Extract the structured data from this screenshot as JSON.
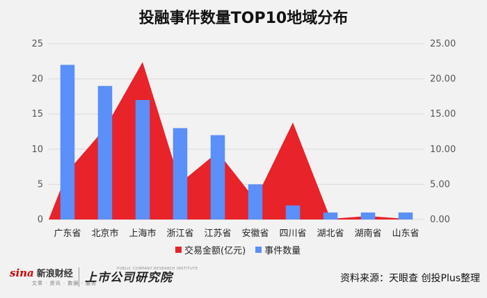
{
  "chart_data": {
    "type": "bar",
    "title": "投融事件数量TOP10地域分布",
    "categories": [
      "广东省",
      "北京市",
      "上海市",
      "浙江省",
      "江苏省",
      "安徽省",
      "四川省",
      "湖北省",
      "湖南省",
      "山东省"
    ],
    "series": [
      {
        "name": "交易金额(亿元)",
        "type": "area",
        "axis": "right",
        "color": "#e8232a",
        "values": [
          6.8,
          13.0,
          22.4,
          5.2,
          9.6,
          2.8,
          13.8,
          0.1,
          0.5,
          0.1
        ]
      },
      {
        "name": "事件数量",
        "type": "bar",
        "axis": "left",
        "color": "#5b8ff9",
        "values": [
          22,
          19,
          17,
          13,
          12,
          5,
          2,
          1,
          1,
          1
        ]
      }
    ],
    "ylim_left": [
      0,
      25
    ],
    "yticks_left": [
      "0",
      "5",
      "10",
      "15",
      "20",
      "25"
    ],
    "ylim_right": [
      0,
      25
    ],
    "yticks_right": [
      "0.00",
      "5.00",
      "10.00",
      "15.00",
      "20.00",
      "25.00"
    ],
    "grid": true,
    "legend_position": "bottom"
  },
  "footer": {
    "sina_logo": "sina",
    "sina_name": "新浪财经",
    "sina_sub": "文章 · 资讯 · 数据 · 服务",
    "institute_name": "上市公司研究院",
    "institute_en": "PUBLIC COMPANY RESEARCH INSTITUTE",
    "source": "资料来源：天眼查 创投Plus整理"
  }
}
